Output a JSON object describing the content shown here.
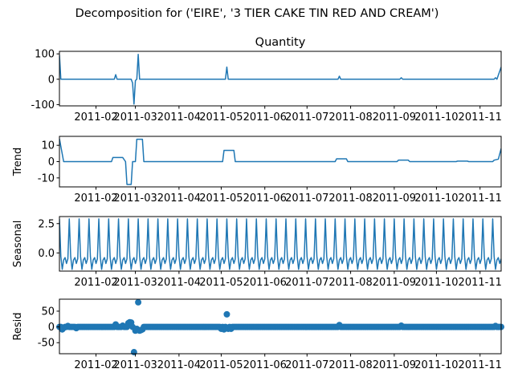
{
  "figure": {
    "suptitle": "Decomposition for ('EIRE', '3 TIER CAKE TIN RED AND CREAM')"
  },
  "chart_data": [
    {
      "type": "line",
      "panel": "observed",
      "title": "Quantity",
      "ylabel": "",
      "color": "#1f77b4",
      "xlim": [
        "2011-01-06",
        "2011-11-16"
      ],
      "x_ticks": [
        "2011-02",
        "2011-03",
        "2011-04",
        "2011-05",
        "2011-06",
        "2011-07",
        "2011-08",
        "2011-09",
        "2011-10",
        "2011-11"
      ],
      "ylim": [
        -105,
        110
      ],
      "y_ticks": [
        -100,
        0,
        100
      ],
      "points": [
        [
          "2011-01-06",
          96
        ],
        [
          "2011-01-07",
          0
        ],
        [
          "2011-02-14",
          0
        ],
        [
          "2011-02-15",
          18
        ],
        [
          "2011-02-16",
          0
        ],
        [
          "2011-02-26",
          0
        ],
        [
          "2011-02-27",
          -15
        ],
        [
          "2011-02-28",
          -98
        ],
        [
          "2011-03-01",
          -5
        ],
        [
          "2011-03-02",
          0
        ],
        [
          "2011-03-03",
          98
        ],
        [
          "2011-03-04",
          0
        ],
        [
          "2011-05-04",
          0
        ],
        [
          "2011-05-05",
          48
        ],
        [
          "2011-05-06",
          0
        ],
        [
          "2011-07-23",
          0
        ],
        [
          "2011-07-24",
          12
        ],
        [
          "2011-07-25",
          0
        ],
        [
          "2011-09-05",
          0
        ],
        [
          "2011-09-06",
          6
        ],
        [
          "2011-09-07",
          0
        ],
        [
          "2011-11-11",
          0
        ],
        [
          "2011-11-12",
          6
        ],
        [
          "2011-11-13",
          0
        ],
        [
          "2011-11-16",
          48
        ]
      ]
    },
    {
      "type": "line",
      "panel": "trend",
      "title": "",
      "ylabel": "Trend",
      "color": "#1f77b4",
      "xlim": [
        "2011-01-06",
        "2011-11-16"
      ],
      "x_ticks": [
        "2011-02",
        "2011-03",
        "2011-04",
        "2011-05",
        "2011-06",
        "2011-07",
        "2011-08",
        "2011-09",
        "2011-10",
        "2011-11"
      ],
      "ylim": [
        -15.5,
        15.5
      ],
      "y_ticks": [
        -10,
        0,
        10
      ],
      "points": [
        [
          "2011-01-06",
          14
        ],
        [
          "2011-01-09",
          0
        ],
        [
          "2011-02-12",
          0
        ],
        [
          "2011-02-13",
          2.5
        ],
        [
          "2011-02-20",
          2.5
        ],
        [
          "2011-02-22",
          0
        ],
        [
          "2011-02-23",
          -14
        ],
        [
          "2011-02-26",
          -14
        ],
        [
          "2011-02-27",
          0
        ],
        [
          "2011-03-01",
          0
        ],
        [
          "2011-03-02",
          13.7
        ],
        [
          "2011-03-06",
          13.7
        ],
        [
          "2011-03-07",
          0
        ],
        [
          "2011-05-02",
          0
        ],
        [
          "2011-05-03",
          6.9
        ],
        [
          "2011-05-10",
          6.9
        ],
        [
          "2011-05-11",
          0
        ],
        [
          "2011-07-21",
          0
        ],
        [
          "2011-07-22",
          1.7
        ],
        [
          "2011-07-29",
          1.7
        ],
        [
          "2011-07-30",
          0
        ],
        [
          "2011-09-03",
          0
        ],
        [
          "2011-09-04",
          0.9
        ],
        [
          "2011-09-11",
          0.9
        ],
        [
          "2011-09-12",
          0
        ],
        [
          "2011-10-15",
          0
        ],
        [
          "2011-10-16",
          0.3
        ],
        [
          "2011-10-23",
          0.3
        ],
        [
          "2011-10-24",
          0
        ],
        [
          "2011-11-10",
          0
        ],
        [
          "2011-11-11",
          0.9
        ],
        [
          "2011-11-14",
          1.5
        ],
        [
          "2011-11-16",
          8
        ]
      ]
    },
    {
      "type": "line",
      "panel": "seasonal",
      "title": "",
      "ylabel": "Seasonal",
      "color": "#1f77b4",
      "xlim": [
        "2011-01-06",
        "2011-11-16"
      ],
      "x_ticks": [
        "2011-02",
        "2011-03",
        "2011-04",
        "2011-05",
        "2011-06",
        "2011-07",
        "2011-08",
        "2011-09",
        "2011-10",
        "2011-11"
      ],
      "ylim": [
        -1.55,
        3.1
      ],
      "y_ticks": [
        0.0,
        2.5
      ],
      "y_tick_labels": [
        "0.0",
        "2.5"
      ],
      "period_start": "2011-01-06",
      "period_days": 7,
      "pattern": [
        2.9,
        -0.3,
        -1.4,
        -0.6,
        -0.4,
        -0.9,
        -0.5
      ]
    },
    {
      "type": "scatter",
      "panel": "resid",
      "title": "",
      "ylabel": "Resid",
      "color": "#1f77b4",
      "xlim": [
        "2011-01-06",
        "2011-11-16"
      ],
      "x_ticks": [
        "2011-02",
        "2011-03",
        "2011-04",
        "2011-05",
        "2011-06",
        "2011-07",
        "2011-08",
        "2011-09",
        "2011-10",
        "2011-11"
      ],
      "ylim": [
        -85,
        88
      ],
      "y_ticks": [
        -50,
        0,
        50
      ],
      "dense_range": [
        "2011-01-06",
        "2011-11-16"
      ],
      "dense_value": 0,
      "points": [
        [
          "2011-01-08",
          -8
        ],
        [
          "2011-01-09",
          -3
        ],
        [
          "2011-01-12",
          3
        ],
        [
          "2011-01-18",
          -4
        ],
        [
          "2011-02-15",
          8
        ],
        [
          "2011-02-20",
          4
        ],
        [
          "2011-02-24",
          12
        ],
        [
          "2011-02-25",
          15
        ],
        [
          "2011-02-26",
          14
        ],
        [
          "2011-02-28",
          -80
        ],
        [
          "2011-03-01",
          -12
        ],
        [
          "2011-03-02",
          -6
        ],
        [
          "2011-03-03",
          78
        ],
        [
          "2011-03-04",
          -12
        ],
        [
          "2011-03-05",
          -10
        ],
        [
          "2011-03-06",
          -8
        ],
        [
          "2011-05-01",
          -6
        ],
        [
          "2011-05-03",
          -8
        ],
        [
          "2011-05-05",
          40
        ],
        [
          "2011-05-06",
          -6
        ],
        [
          "2011-05-08",
          -6
        ],
        [
          "2011-07-24",
          6
        ],
        [
          "2011-09-06",
          4
        ],
        [
          "2011-11-12",
          3
        ]
      ]
    }
  ]
}
